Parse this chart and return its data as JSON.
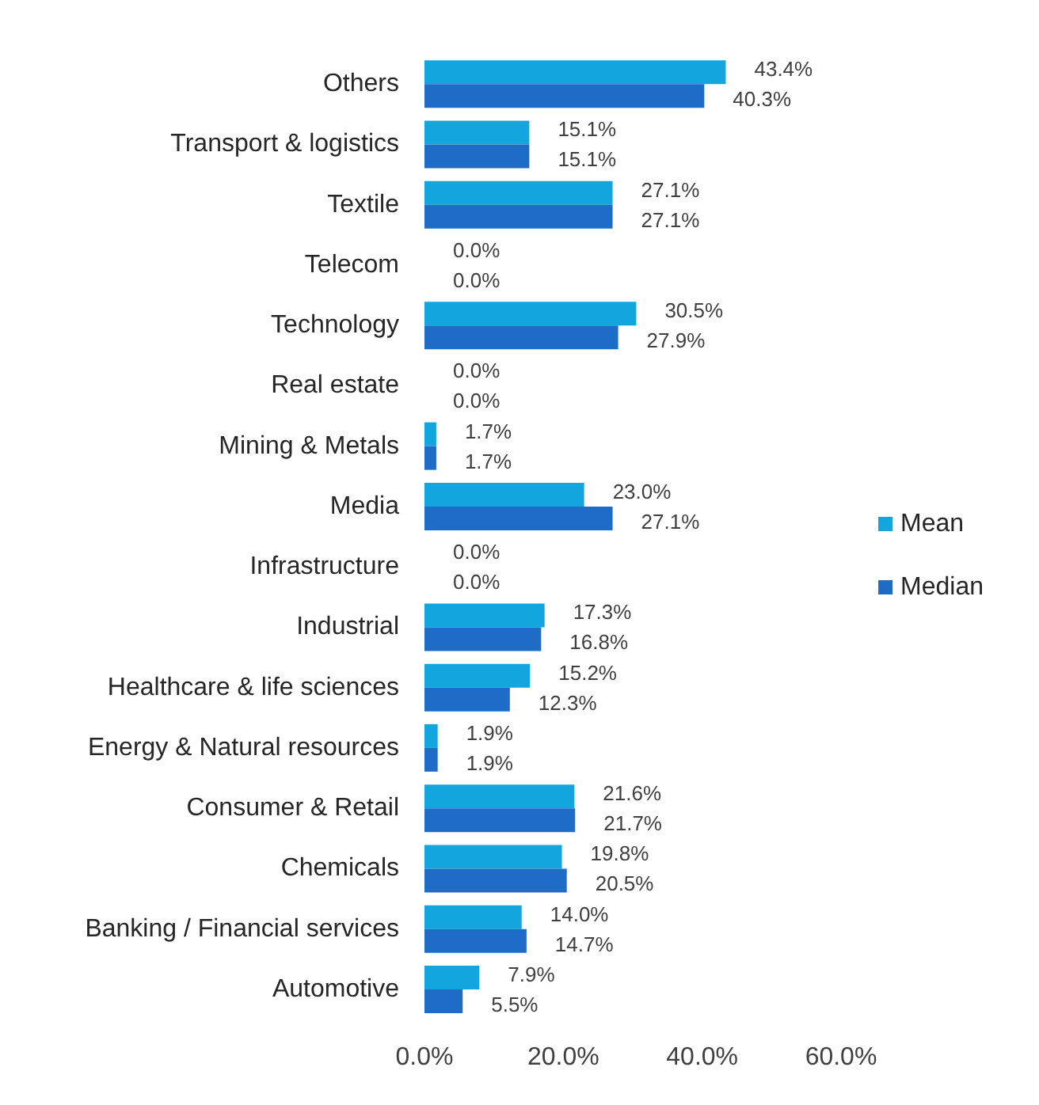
{
  "chart_data": {
    "type": "bar",
    "orientation": "horizontal",
    "categories": [
      "Others",
      "Transport & logistics",
      "Textile",
      "Telecom",
      "Technology",
      "Real estate",
      "Mining & Metals",
      "Media",
      "Infrastructure",
      "Industrial",
      "Healthcare & life sciences",
      "Energy & Natural resources",
      "Consumer & Retail",
      "Chemicals",
      "Banking / Financial services",
      "Automotive"
    ],
    "series": [
      {
        "name": "Mean",
        "color": "#12a5de",
        "values": [
          43.4,
          15.1,
          27.1,
          0,
          30.5,
          0,
          1.7,
          23.0,
          0,
          17.3,
          15.2,
          1.9,
          21.6,
          19.8,
          14.0,
          7.9
        ],
        "value_labels": [
          "43.4%",
          "15.1%",
          "27.1%",
          "0.0%",
          "30.5%",
          "0.0%",
          "1.7%",
          "23.0%",
          "0.0%",
          "17.3%",
          "15.2%",
          "1.9%",
          "21.6%",
          "19.8%",
          "14.0%",
          "7.9%"
        ]
      },
      {
        "name": "Median",
        "color": "#1f6cc6",
        "values": [
          40.3,
          15.1,
          27.1,
          0,
          27.9,
          0,
          1.7,
          27.1,
          0,
          16.8,
          12.3,
          1.9,
          21.7,
          20.5,
          14.7,
          5.5
        ],
        "value_labels": [
          "40.3%",
          "15.1%",
          "27.1%",
          "0.0%",
          "27.9%",
          "0.0%",
          "1.7%",
          "27.1%",
          "0.0%",
          "16.8%",
          "12.3%",
          "1.9%",
          "21.7%",
          "20.5%",
          "14.7%",
          "5.5%"
        ]
      }
    ],
    "xlim": [
      0,
      60
    ],
    "xticks": [
      {
        "value": 0,
        "label": "0.0%"
      },
      {
        "value": 20,
        "label": "20.0%"
      },
      {
        "value": 40,
        "label": "40.0%"
      },
      {
        "value": 60,
        "label": "60.0%"
      }
    ],
    "grid": false,
    "legend": "right"
  }
}
